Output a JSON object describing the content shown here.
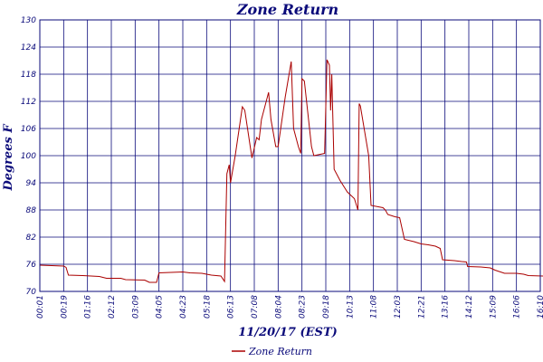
{
  "chart_data": {
    "type": "line",
    "title": "Zone Return",
    "xlabel": "11/20/17 (EST)",
    "ylabel": "Degrees F",
    "ylim": [
      70,
      130
    ],
    "y_ticks": [
      70,
      76,
      82,
      88,
      94,
      100,
      106,
      112,
      118,
      124,
      130
    ],
    "x_tick_labels": [
      "00:01",
      "00:19",
      "01:16",
      "02:12",
      "03:09",
      "04:05",
      "04:23",
      "05:18",
      "06:13",
      "07:08",
      "08:04",
      "08:23",
      "09:18",
      "10:13",
      "11:08",
      "12:03",
      "12:21",
      "13:16",
      "14:12",
      "15:09",
      "16:06",
      "16:10"
    ],
    "grid": true,
    "legend_position": "bottom-center",
    "series": [
      {
        "name": "Zone Return",
        "color": "#aa0000",
        "points": [
          [
            0.0,
            75.8
          ],
          [
            1.0,
            75.6
          ],
          [
            1.1,
            75.3
          ],
          [
            1.2,
            73.6
          ],
          [
            1.8,
            73.5
          ],
          [
            2.5,
            73.3
          ],
          [
            2.8,
            72.9
          ],
          [
            3.4,
            72.9
          ],
          [
            3.6,
            72.6
          ],
          [
            4.4,
            72.5
          ],
          [
            4.6,
            72.0
          ],
          [
            4.9,
            72.0
          ],
          [
            5.0,
            74.1
          ],
          [
            6.0,
            74.3
          ],
          [
            6.3,
            74.1
          ],
          [
            6.8,
            74.0
          ],
          [
            7.2,
            73.6
          ],
          [
            7.6,
            73.4
          ],
          [
            7.75,
            72.2
          ],
          [
            7.85,
            96.0
          ],
          [
            7.95,
            98.0
          ],
          [
            8.0,
            94.0
          ],
          [
            8.2,
            100.0
          ],
          [
            8.5,
            110.8
          ],
          [
            8.6,
            110.0
          ],
          [
            8.9,
            99.5
          ],
          [
            9.1,
            104.0
          ],
          [
            9.2,
            103.5
          ],
          [
            9.3,
            108.0
          ],
          [
            9.6,
            114.0
          ],
          [
            9.7,
            108.0
          ],
          [
            9.9,
            102.0
          ],
          [
            10.0,
            102.0
          ],
          [
            10.3,
            113.0
          ],
          [
            10.55,
            120.8
          ],
          [
            10.65,
            106.0
          ],
          [
            10.85,
            102.0
          ],
          [
            10.95,
            100.5
          ],
          [
            11.0,
            117.0
          ],
          [
            11.1,
            116.5
          ],
          [
            11.4,
            102.0
          ],
          [
            11.5,
            100.0
          ],
          [
            11.95,
            100.5
          ],
          [
            12.05,
            121.2
          ],
          [
            12.15,
            120.0
          ],
          [
            12.2,
            110.0
          ],
          [
            12.25,
            118.0
          ],
          [
            12.35,
            97.0
          ],
          [
            12.6,
            94.5
          ],
          [
            12.9,
            92.0
          ],
          [
            13.2,
            90.5
          ],
          [
            13.35,
            88.0
          ],
          [
            13.4,
            111.5
          ],
          [
            13.45,
            111.0
          ],
          [
            13.8,
            100.0
          ],
          [
            13.9,
            89.0
          ],
          [
            14.4,
            88.5
          ],
          [
            14.5,
            88.0
          ],
          [
            14.6,
            87.0
          ],
          [
            14.9,
            86.5
          ],
          [
            15.1,
            86.3
          ],
          [
            15.3,
            81.5
          ],
          [
            15.7,
            81.0
          ],
          [
            16.0,
            80.5
          ],
          [
            16.3,
            80.3
          ],
          [
            16.6,
            80.0
          ],
          [
            16.8,
            79.5
          ],
          [
            16.9,
            77.0
          ],
          [
            17.4,
            76.8
          ],
          [
            17.7,
            76.6
          ],
          [
            17.9,
            76.5
          ],
          [
            17.95,
            75.5
          ],
          [
            18.5,
            75.4
          ],
          [
            18.9,
            75.2
          ],
          [
            19.1,
            74.7
          ],
          [
            19.5,
            74.0
          ],
          [
            20.0,
            74.0
          ],
          [
            20.3,
            73.8
          ],
          [
            20.5,
            73.5
          ],
          [
            21.1,
            73.4
          ],
          [
            21.5,
            73.3
          ],
          [
            21.7,
            75.5
          ],
          [
            22.0,
            76.0
          ]
        ]
      }
    ]
  }
}
